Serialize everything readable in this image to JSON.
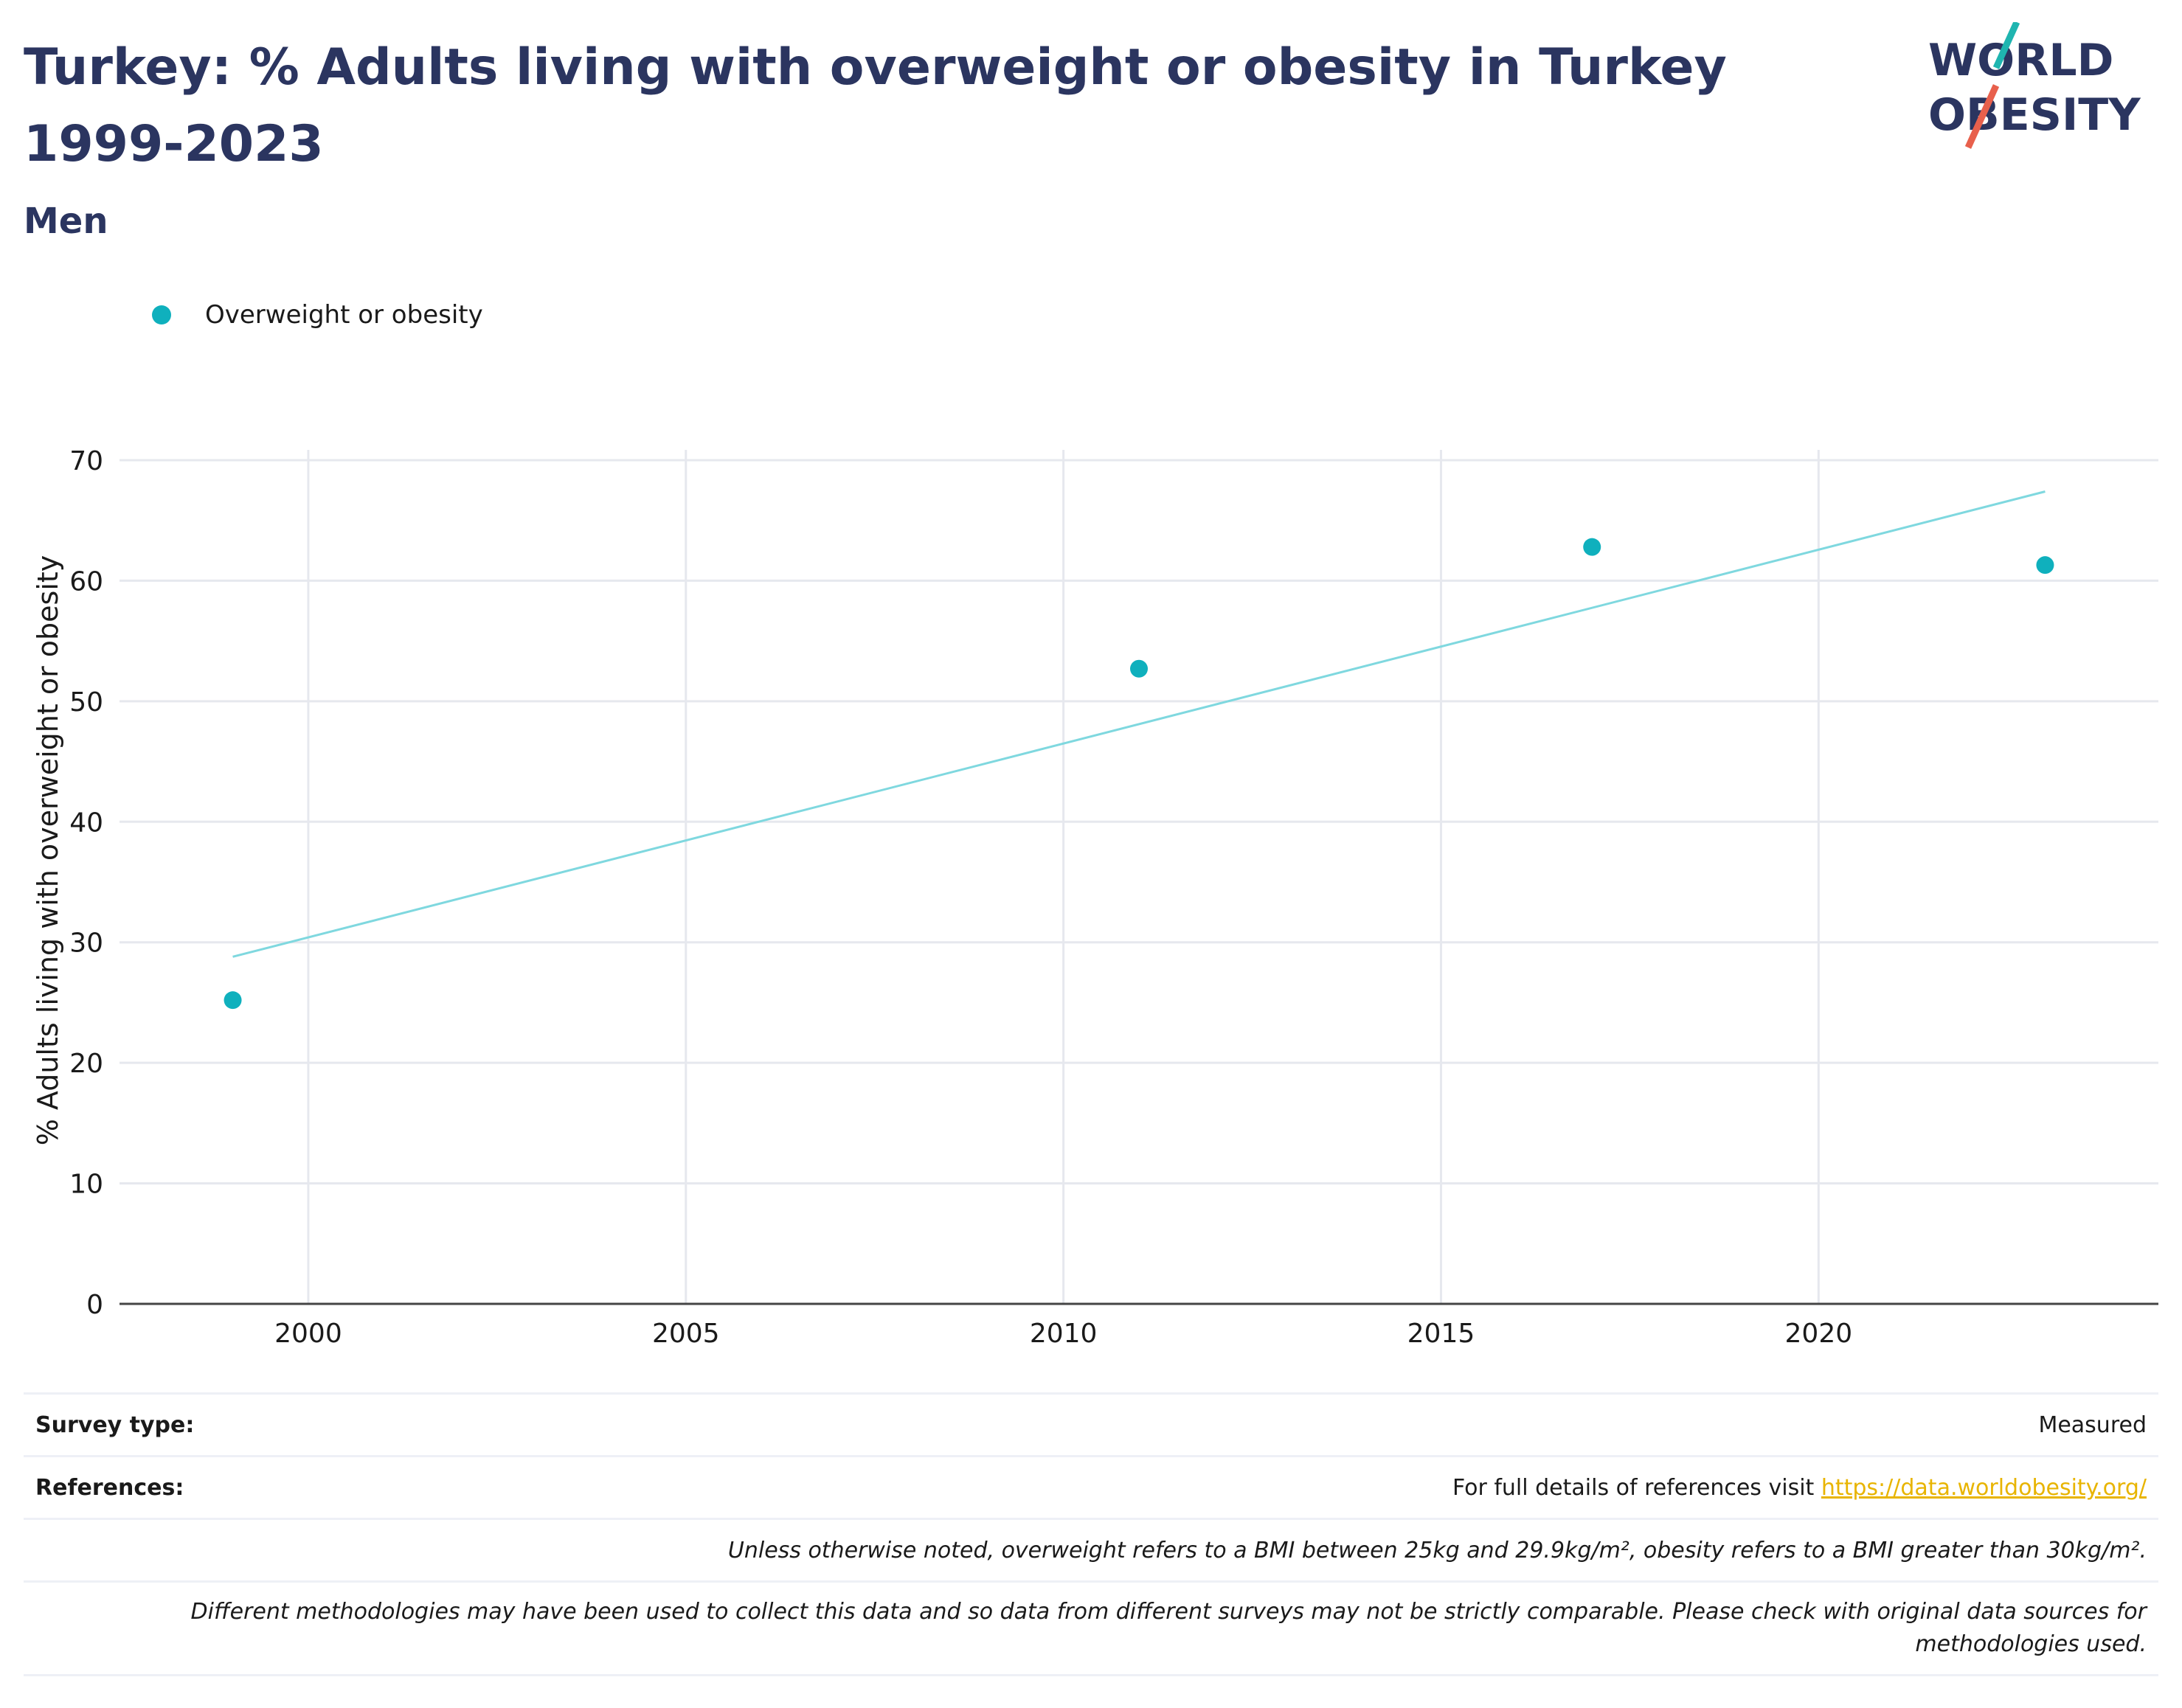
{
  "header": {
    "title": "Turkey: % Adults living with overweight or obesity in Turkey 1999-2023",
    "subtitle": "Men"
  },
  "logo": {
    "line1": "WORLD",
    "line2": "OBESITY"
  },
  "colors": {
    "brand": "#2b3560",
    "series": "#0fb0bd",
    "trend": "#7fd8df",
    "link": "#e8b400",
    "logo_teal": "#1fb5b0",
    "logo_red": "#e8604c"
  },
  "chart_data": {
    "type": "scatter",
    "series": [
      {
        "name": "Overweight or obesity",
        "points": [
          {
            "x": 1999,
            "y": 25.2
          },
          {
            "x": 2011,
            "y": 52.7
          },
          {
            "x": 2017,
            "y": 62.8
          },
          {
            "x": 2023,
            "y": 61.3
          }
        ]
      }
    ],
    "trendline": [
      {
        "x": 1999,
        "y": 28.8
      },
      {
        "x": 2023,
        "y": 67.4
      }
    ],
    "xlabel": "",
    "ylabel": "% Adults living with overweight or obesity",
    "xticks": [
      "2000",
      "2005",
      "2010",
      "2015",
      "2020"
    ],
    "yticks": [
      "0",
      "10",
      "20",
      "30",
      "40",
      "50",
      "60",
      "70"
    ],
    "xlim": [
      1997.5,
      2024.5
    ],
    "ylim": [
      0,
      70
    ],
    "grid": true,
    "legend_position": "top-left"
  },
  "footer": {
    "survey_type_label": "Survey type:",
    "survey_type_value": "Measured",
    "references_label": "References:",
    "references_text": "For full details of references visit ",
    "references_link": "https://data.worldobesity.org/",
    "note1": "Unless otherwise noted, overweight refers to a BMI between 25kg and 29.9kg/m², obesity refers to a BMI greater than 30kg/m².",
    "note2": "Different methodologies may have been used to collect this data and so data from different surveys may not be strictly comparable. Please check with original data sources for methodologies used."
  }
}
